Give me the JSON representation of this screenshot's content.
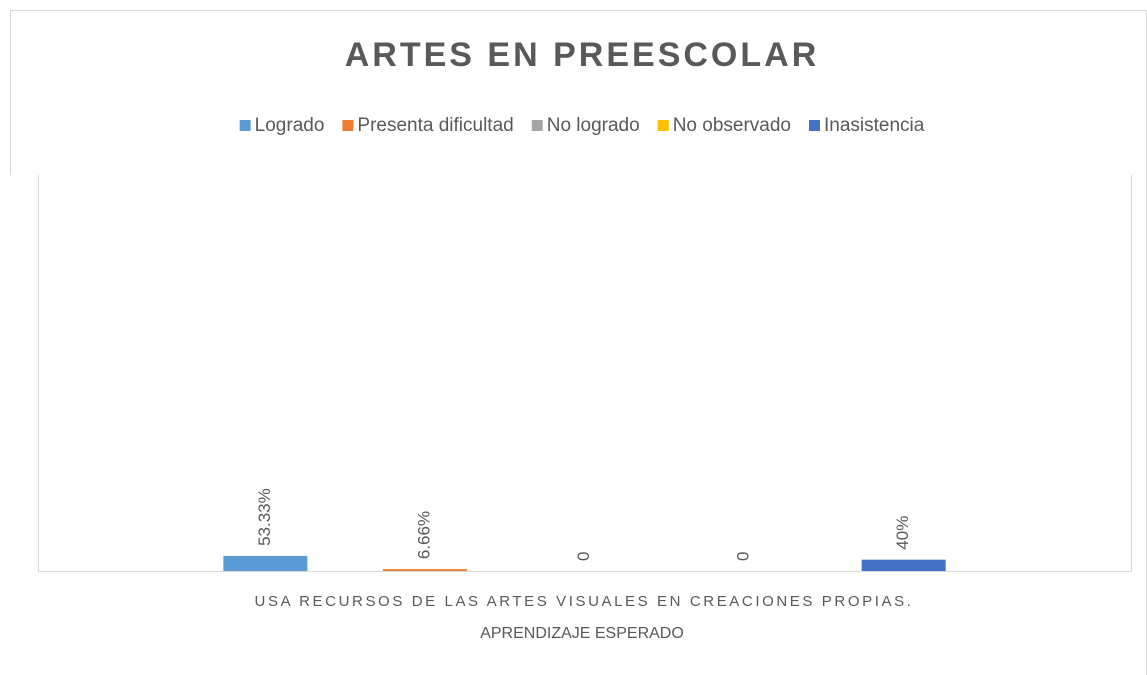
{
  "chart_data": {
    "type": "bar",
    "title": "ARTES EN PREESCOLAR",
    "categories": [
      "USA RECURSOS DE LAS ARTES VISUALES EN CREACIONES PROPIAS."
    ],
    "x_label": "APRENDIZAJE ESPERADO",
    "series": [
      {
        "name": "Logrado",
        "color": "#5b9bd5",
        "values": [
          53.33
        ],
        "value_labels": [
          "53.33%"
        ]
      },
      {
        "name": "Presenta dificultad",
        "color": "#ed7d31",
        "values": [
          6.66
        ],
        "value_labels": [
          "6.66%"
        ]
      },
      {
        "name": "No logrado",
        "color": "#a5a5a5",
        "values": [
          0
        ],
        "value_labels": [
          "0"
        ]
      },
      {
        "name": "No observado",
        "color": "#ffc000",
        "values": [
          0
        ],
        "value_labels": [
          "0"
        ]
      },
      {
        "name": "Inasistencia",
        "color": "#4472c4",
        "values": [
          40
        ],
        "value_labels": [
          "40%"
        ]
      }
    ],
    "ylim": [
      0,
      1400
    ],
    "legend": "top"
  }
}
